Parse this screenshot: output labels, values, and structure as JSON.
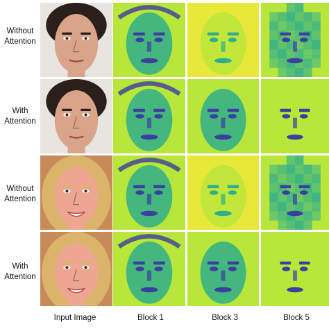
{
  "figure": {
    "rows": [
      {
        "line1": "Without",
        "line2": "Attention",
        "subject": "male",
        "attention": false
      },
      {
        "line1": "With",
        "line2": "Attention",
        "subject": "male",
        "attention": true
      },
      {
        "line1": "Without",
        "line2": "Attention",
        "subject": "female",
        "attention": false
      },
      {
        "line1": "With",
        "line2": "Attention",
        "subject": "female",
        "attention": true
      }
    ],
    "columns": [
      "Input Image",
      "Block 1",
      "Block 3",
      "Block 5"
    ]
  },
  "colors": {
    "viridis_dark": "#3b3f9e",
    "viridis_mid": "#2fae8c",
    "viridis_light": "#b8e63a",
    "viridis_yellow": "#e8e83a",
    "skin_male": "#d9a48a",
    "skin_female": "#eca692",
    "hair_male": "#2a1f1a",
    "hair_female": "#d9b46a"
  }
}
